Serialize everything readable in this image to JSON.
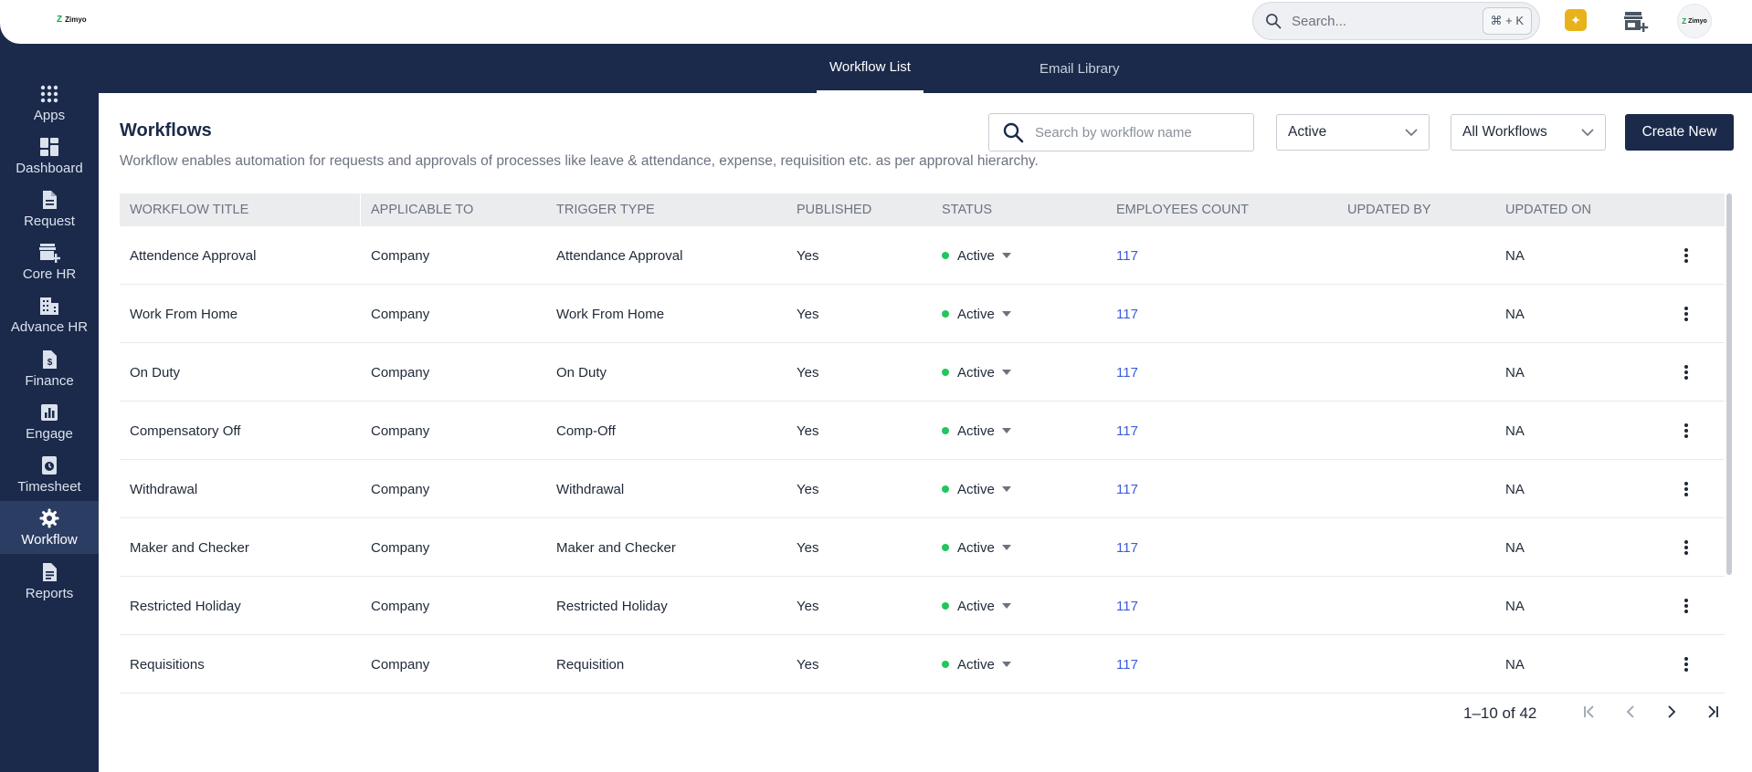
{
  "app": {
    "logo_text": "Zimyo",
    "logo_mark": "Z"
  },
  "topbar": {
    "search_placeholder": "Search...",
    "shortcut": "⌘ + K",
    "avatar_text": "Zimyo",
    "icons": [
      "search-icon",
      "sparkle-icon",
      "store-add-icon",
      "avatar"
    ]
  },
  "tabs": [
    {
      "label": "Workflow List",
      "active": true
    },
    {
      "label": "Email Library",
      "active": false
    }
  ],
  "sidebar": {
    "items": [
      {
        "label": "Apps",
        "icon": "apps-grid-icon",
        "active": false
      },
      {
        "label": "Dashboard",
        "icon": "dashboard-icon",
        "active": false
      },
      {
        "label": "Request",
        "icon": "document-icon",
        "active": false
      },
      {
        "label": "Core HR",
        "icon": "store-add-icon",
        "active": false
      },
      {
        "label": "Advance HR",
        "icon": "building-icon",
        "active": false
      },
      {
        "label": "Finance",
        "icon": "finance-doc-icon",
        "active": false
      },
      {
        "label": "Engage",
        "icon": "bar-chart-icon",
        "active": false
      },
      {
        "label": "Timesheet",
        "icon": "timesheet-icon",
        "active": false
      },
      {
        "label": "Workflow",
        "icon": "gear-icon",
        "active": true
      },
      {
        "label": "Reports",
        "icon": "report-icon",
        "active": false
      }
    ]
  },
  "page": {
    "title": "Workflows",
    "description": "Workflow enables automation for requests and approvals of processes like leave & attendance, expense, requisition etc. as per approval hierarchy.",
    "search_placeholder": "Search by workflow name",
    "status_filter": "Active",
    "type_filter": "All Workflows",
    "create_label": "Create New"
  },
  "table": {
    "columns": [
      "WORKFLOW TITLE",
      "APPLICABLE TO",
      "TRIGGER TYPE",
      "PUBLISHED",
      "STATUS",
      "EMPLOYEES COUNT",
      "UPDATED BY",
      "UPDATED ON"
    ],
    "rows": [
      {
        "title": "Attendence Approval",
        "applicable": "Company",
        "trigger": "Attendance Approval",
        "published": "Yes",
        "status": "Active",
        "count": "117",
        "updated_by": "",
        "updated_on": "NA"
      },
      {
        "title": "Work From Home",
        "applicable": "Company",
        "trigger": "Work From Home",
        "published": "Yes",
        "status": "Active",
        "count": "117",
        "updated_by": "",
        "updated_on": "NA"
      },
      {
        "title": "On Duty",
        "applicable": "Company",
        "trigger": "On Duty",
        "published": "Yes",
        "status": "Active",
        "count": "117",
        "updated_by": "",
        "updated_on": "NA"
      },
      {
        "title": "Compensatory Off",
        "applicable": "Company",
        "trigger": "Comp-Off",
        "published": "Yes",
        "status": "Active",
        "count": "117",
        "updated_by": "",
        "updated_on": "NA"
      },
      {
        "title": "Withdrawal",
        "applicable": "Company",
        "trigger": "Withdrawal",
        "published": "Yes",
        "status": "Active",
        "count": "117",
        "updated_by": "",
        "updated_on": "NA"
      },
      {
        "title": "Maker and Checker",
        "applicable": "Company",
        "trigger": "Maker and Checker",
        "published": "Yes",
        "status": "Active",
        "count": "117",
        "updated_by": "",
        "updated_on": "NA"
      },
      {
        "title": "Restricted Holiday",
        "applicable": "Company",
        "trigger": "Restricted Holiday",
        "published": "Yes",
        "status": "Active",
        "count": "117",
        "updated_by": "",
        "updated_on": "NA"
      },
      {
        "title": "Requisitions",
        "applicable": "Company",
        "trigger": "Requisition",
        "published": "Yes",
        "status": "Active",
        "count": "117",
        "updated_by": "",
        "updated_on": "NA"
      }
    ]
  },
  "pagination": {
    "range_text": "1–10 of 42"
  },
  "colors": {
    "navy": "#1b2a4a",
    "active_dot": "#22c55e",
    "link": "#3b5bdb",
    "accent_yellow": "#e8b31a"
  }
}
